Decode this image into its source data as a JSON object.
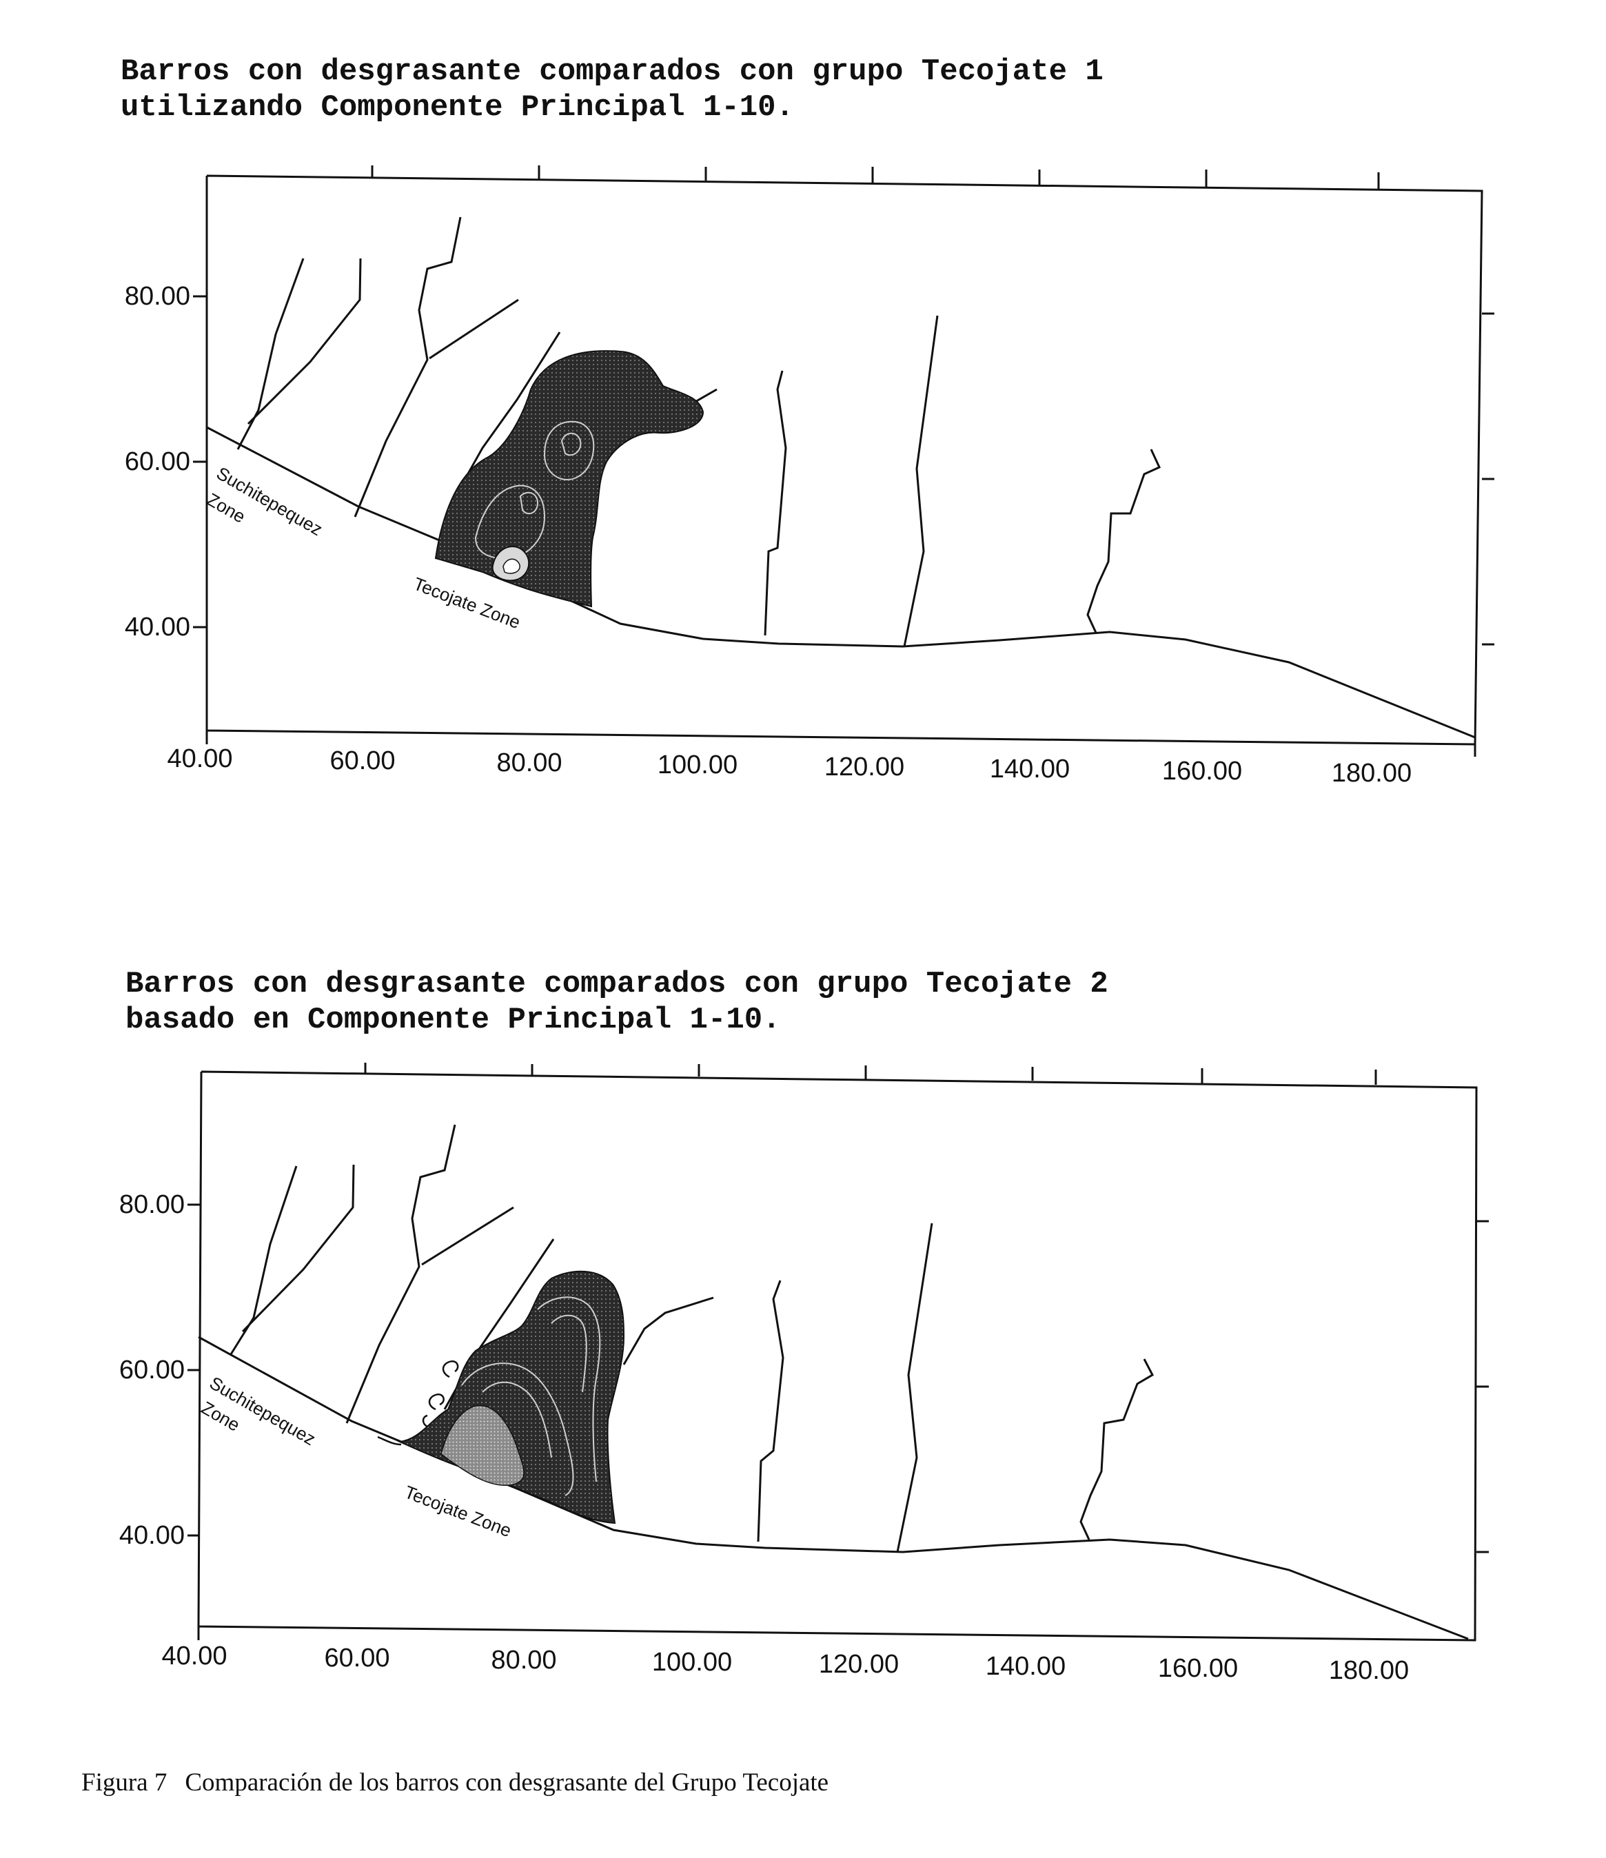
{
  "figures": [
    {
      "title_line1": "Barros con desgrasante comparados con grupo Tecojate 1",
      "title_line2": "utilizando Componente Principal 1-10.",
      "x_ticks": [
        "40.00",
        "60.00",
        "80.00",
        "100.00",
        "120.00",
        "140.00",
        "160.00",
        "180.00"
      ],
      "y_ticks": [
        "80.00",
        "60.00",
        "40.00"
      ],
      "zone_labels": [
        "Suchitepequez",
        "Zone",
        "Tecojate Zone"
      ]
    },
    {
      "title_line1": "Barros con desgrasante comparados con grupo Tecojate 2",
      "title_line2": "basado en Componente Principal 1-10.",
      "x_ticks": [
        "40.00",
        "60.00",
        "80.00",
        "100.00",
        "120.00",
        "140.00",
        "160.00",
        "180.00"
      ],
      "y_ticks": [
        "80.00",
        "60.00",
        "40.00"
      ],
      "zone_labels": [
        "Suchitepequez",
        "Zone",
        "Tecojate Zone"
      ]
    }
  ],
  "caption": {
    "label": "Figura 7",
    "text": "Comparación de los barros con desgrasante del Grupo Tecojate"
  },
  "colors": {
    "ink": "#111111",
    "contour_fill": "#2a2a2a",
    "contour_mid": "#6e6e6e",
    "contour_light": "#c8c8c8"
  }
}
